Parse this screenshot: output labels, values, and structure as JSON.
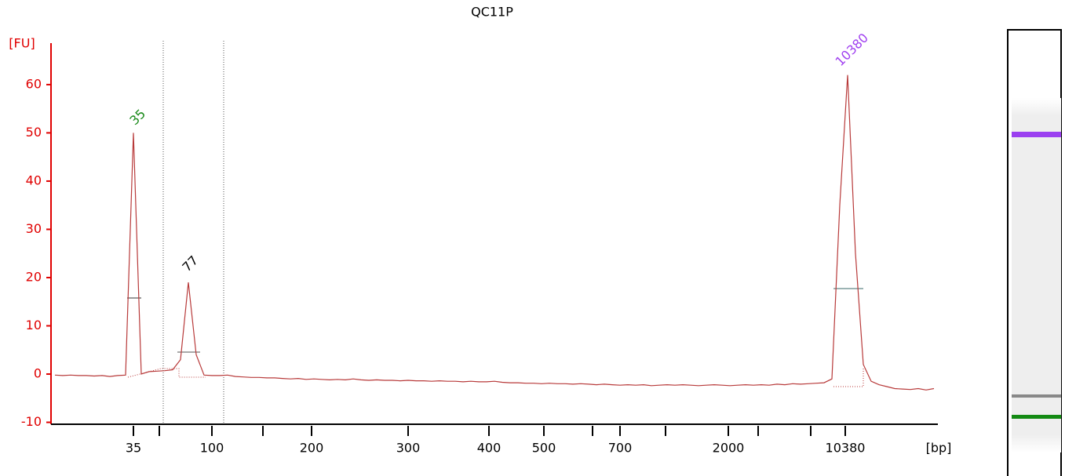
{
  "chart_data": {
    "type": "line",
    "title": "QC11P",
    "y_label": "[FU]",
    "x_label": "[bp]",
    "ylim": [
      -10.4,
      68.6
    ],
    "yticks": [
      -10,
      0,
      10,
      20,
      30,
      40,
      50,
      60
    ],
    "axis_color": "#e00000",
    "xticks": [
      35,
      null,
      100,
      null,
      200,
      300,
      400,
      500,
      null,
      700,
      null,
      2000,
      null,
      null,
      10380
    ],
    "series": [
      {
        "name": "QC11P",
        "color": "#b83a3a",
        "values": [
          -0.2,
          -0.3,
          -0.2,
          -0.3,
          -0.3,
          -0.4,
          -0.3,
          -0.5,
          -0.3,
          -0.2,
          50,
          0,
          0.5,
          0.6,
          0.7,
          0.9,
          3,
          19,
          4,
          -0.2,
          -0.3,
          -0.3,
          -0.2,
          -0.5,
          -0.6,
          -0.7,
          -0.7,
          -0.8,
          -0.8,
          -0.9,
          -1.0,
          -0.9,
          -1.1,
          -1.0,
          -1.1,
          -1.2,
          -1.1,
          -1.2,
          -1.0,
          -1.2,
          -1.3,
          -1.2,
          -1.3,
          -1.3,
          -1.4,
          -1.3,
          -1.4,
          -1.4,
          -1.5,
          -1.4,
          -1.5,
          -1.5,
          -1.6,
          -1.5,
          -1.6,
          -1.6,
          -1.5,
          -1.7,
          -1.8,
          -1.8,
          -1.9,
          -1.9,
          -2.0,
          -1.9,
          -2.0,
          -2.0,
          -2.1,
          -2.0,
          -2.1,
          -2.2,
          -2.1,
          -2.2,
          -2.3,
          -2.2,
          -2.3,
          -2.2,
          -2.4,
          -2.3,
          -2.2,
          -2.3,
          -2.2,
          -2.3,
          -2.4,
          -2.3,
          -2.2,
          -2.3,
          -2.4,
          -2.3,
          -2.2,
          -2.3,
          -2.2,
          -2.3,
          -2.1,
          -2.2,
          -2.0,
          -2.1,
          -2.0,
          -1.9,
          -1.8,
          -1,
          35,
          62,
          25,
          2,
          -1.5,
          -2.2,
          -2.6,
          -3,
          -3.1,
          -3.2,
          -3.0,
          -3.3,
          -3.0
        ]
      }
    ],
    "peak_labels": [
      {
        "text": "35",
        "color": "#1a8a1a"
      },
      {
        "text": "77",
        "color": "#000000"
      },
      {
        "text": "10380",
        "color": "#a040f0"
      }
    ]
  }
}
